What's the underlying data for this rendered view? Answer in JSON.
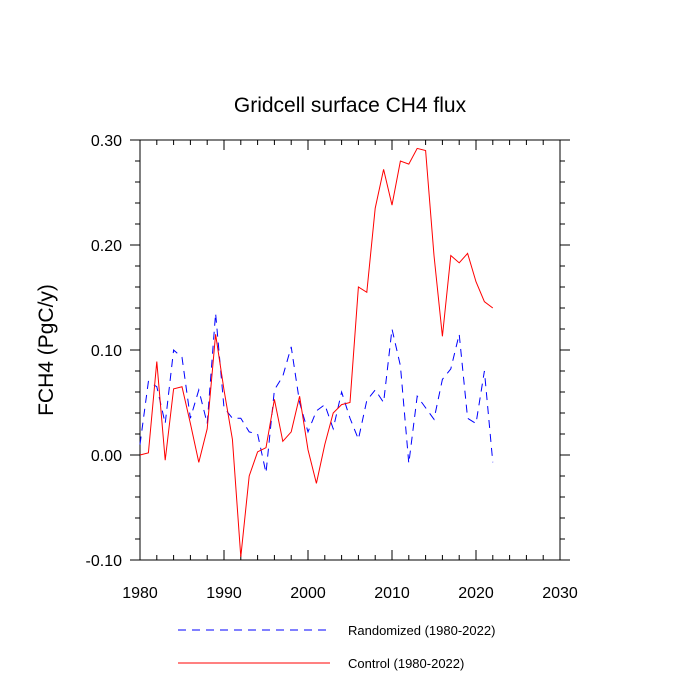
{
  "chart_data": {
    "type": "line",
    "title": "Gridcell surface CH4 flux",
    "xlabel": "",
    "ylabel": "FCH4  (PgC/y)",
    "xlim": [
      1980,
      2030
    ],
    "ylim": [
      -0.1,
      0.3
    ],
    "xticks": [
      1980,
      1990,
      2000,
      2010,
      2020,
      2030
    ],
    "xtick_labels": [
      "1980",
      "1990",
      "2000",
      "2010",
      "2020",
      "2030"
    ],
    "yticks": [
      -0.1,
      0.0,
      0.1,
      0.2,
      0.3
    ],
    "ytick_labels": [
      "-0.10",
      "0.00",
      "0.10",
      "0.20",
      "0.30"
    ],
    "grid": false,
    "legend_position": "bottom",
    "x": [
      1980,
      1981,
      1982,
      1983,
      1984,
      1985,
      1986,
      1987,
      1988,
      1989,
      1990,
      1991,
      1992,
      1993,
      1994,
      1995,
      1996,
      1997,
      1998,
      1999,
      2000,
      2001,
      2002,
      2003,
      2004,
      2005,
      2006,
      2007,
      2008,
      2009,
      2010,
      2011,
      2012,
      2013,
      2014,
      2015,
      2016,
      2017,
      2018,
      2019,
      2020,
      2021,
      2022
    ],
    "series": [
      {
        "name": "Randomized (1980-2022)",
        "color": "#0000ff",
        "dash": "dashed",
        "values": [
          0.01,
          0.07,
          0.065,
          0.03,
          0.1,
          0.093,
          0.035,
          0.062,
          0.03,
          0.135,
          0.045,
          0.035,
          0.035,
          0.022,
          0.02,
          -0.017,
          0.062,
          0.075,
          0.103,
          0.05,
          0.022,
          0.042,
          0.048,
          0.025,
          0.06,
          0.035,
          0.015,
          0.052,
          0.062,
          0.05,
          0.12,
          0.085,
          -0.008,
          0.056,
          0.045,
          0.034,
          0.072,
          0.082,
          0.115,
          0.035,
          0.03,
          0.08,
          -0.007
        ]
      },
      {
        "name": "Control (1980-2022)",
        "color": "#ff0000",
        "dash": "solid",
        "values": [
          0.0,
          0.002,
          0.089,
          -0.005,
          0.063,
          0.065,
          0.03,
          -0.007,
          0.025,
          0.115,
          0.062,
          0.015,
          -0.097,
          -0.02,
          0.003,
          0.007,
          0.053,
          0.013,
          0.022,
          0.056,
          0.005,
          -0.027,
          0.01,
          0.04,
          0.048,
          0.05,
          0.16,
          0.155,
          0.235,
          0.272,
          0.238,
          0.28,
          0.277,
          0.292,
          0.29,
          0.19,
          0.113,
          0.19,
          0.183,
          0.192,
          0.165,
          0.146,
          0.14
        ]
      }
    ]
  }
}
